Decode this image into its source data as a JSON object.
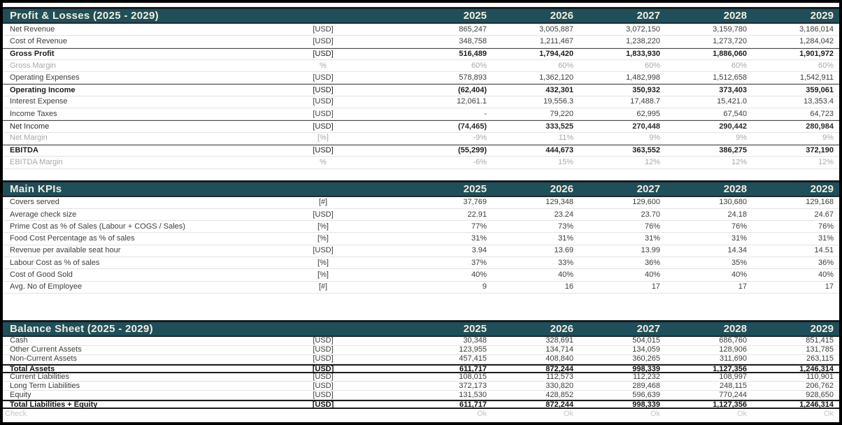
{
  "colors": {
    "header_bg": "#1f4f5a",
    "header_text": "#f2eedd",
    "text": "#3c3c3c",
    "muted": "#a8a8a8",
    "check": "#c5c5c5"
  },
  "years": [
    "2025",
    "2026",
    "2027",
    "2028",
    "2029"
  ],
  "sections": [
    {
      "id": "pnl",
      "title": "Profit & Losses (2025 - 2029)",
      "rows": [
        {
          "label": "Net Revenue",
          "unit": "[USD]",
          "values": [
            "865,247",
            "3,005,887",
            "3,072,150",
            "3,159,780",
            "3,186,014"
          ],
          "style": "normal"
        },
        {
          "label": "Cost of Revenue",
          "unit": "[USD]",
          "values": [
            "348,758",
            "1,211,467",
            "1,238,220",
            "1,273,720",
            "1,284,042"
          ],
          "style": "normal"
        },
        {
          "label": "Gross Profit",
          "unit": "[USD]",
          "values": [
            "516,489",
            "1,794,420",
            "1,833,930",
            "1,886,060",
            "1,901,972"
          ],
          "style": "total"
        },
        {
          "label": "Gross Margin",
          "unit": "%",
          "values": [
            "60%",
            "60%",
            "60%",
            "60%",
            "60%"
          ],
          "style": "muted"
        },
        {
          "label": "Operating Expenses",
          "unit": "[USD]",
          "values": [
            "578,893",
            "1,362,120",
            "1,482,998",
            "1,512,658",
            "1,542,911"
          ],
          "style": "normal"
        },
        {
          "label": "Operating Income",
          "unit": "[USD]",
          "values": [
            "(62,404)",
            "432,301",
            "350,932",
            "373,403",
            "359,061"
          ],
          "style": "total"
        },
        {
          "label": "Interest Expense",
          "unit": "[USD]",
          "values": [
            "12,061.1",
            "19,556.3",
            "17,488.7",
            "15,421.0",
            "13,353.4"
          ],
          "style": "normal"
        },
        {
          "label": "Income Taxes",
          "unit": "[USD]",
          "values": [
            "-",
            "79,220",
            "62,995",
            "67,540",
            "64,723"
          ],
          "style": "normal"
        },
        {
          "label": "Net Income",
          "unit": "[USD]",
          "values": [
            "(74,465)",
            "333,525",
            "270,448",
            "290,442",
            "280,984"
          ],
          "style": "subtotal"
        },
        {
          "label": "Net Margin",
          "unit": "[%]",
          "values": [
            "-9%",
            "11%",
            "9%",
            "9%",
            "9%"
          ],
          "style": "muted"
        },
        {
          "label": "EBITDA",
          "unit": "[USD]",
          "values": [
            "(55,299)",
            "444,673",
            "363,552",
            "386,275",
            "372,190"
          ],
          "style": "total"
        },
        {
          "label": "EBITDA Margin",
          "unit": "%",
          "values": [
            "-6%",
            "15%",
            "12%",
            "12%",
            "12%"
          ],
          "style": "muted"
        }
      ]
    },
    {
      "id": "kpis",
      "title": "Main KPIs",
      "rows": [
        {
          "label": "Covers served",
          "unit": "[#]",
          "values": [
            "37,769",
            "129,348",
            "129,600",
            "130,680",
            "129,168"
          ],
          "style": "normal"
        },
        {
          "label": "Average check size",
          "unit": "[USD]",
          "values": [
            "22.91",
            "23.24",
            "23.70",
            "24.18",
            "24.67"
          ],
          "style": "normal"
        },
        {
          "label": "Prime Cost as % of Sales (Labour + COGS / Sales)",
          "unit": "[%]",
          "values": [
            "77%",
            "73%",
            "76%",
            "76%",
            "76%"
          ],
          "style": "normal"
        },
        {
          "label": "Food Cost Percentage as % of sales",
          "unit": "[%]",
          "values": [
            "31%",
            "31%",
            "31%",
            "31%",
            "31%"
          ],
          "style": "normal"
        },
        {
          "label": "Revenue per available seat hour",
          "unit": "[USD]",
          "values": [
            "3.94",
            "13.69",
            "13.99",
            "14.34",
            "14.51"
          ],
          "style": "normal"
        },
        {
          "label": "Labour Cost as % of sales",
          "unit": "[%]",
          "values": [
            "37%",
            "33%",
            "36%",
            "35%",
            "36%"
          ],
          "style": "normal"
        },
        {
          "label": "Cost of Good Sold",
          "unit": "[%]",
          "values": [
            "40%",
            "40%",
            "40%",
            "40%",
            "40%"
          ],
          "style": "normal"
        },
        {
          "label": "Avg. No of Employee",
          "unit": "[#]",
          "values": [
            "9",
            "16",
            "17",
            "17",
            "17"
          ],
          "style": "normal"
        }
      ]
    },
    {
      "id": "balance",
      "title": "Balance Sheet (2025 - 2029)",
      "rows": [
        {
          "label": "Cash",
          "unit": "[USD]",
          "values": [
            "30,348",
            "328,691",
            "504,015",
            "686,760",
            "851,415"
          ],
          "style": "normal"
        },
        {
          "label": "Other Current Assets",
          "unit": "[USD]",
          "values": [
            "123,955",
            "134,714",
            "134,059",
            "128,906",
            "131,785"
          ],
          "style": "normal"
        },
        {
          "label": "Non-Current Assets",
          "unit": "[USD]",
          "values": [
            "457,415",
            "408,840",
            "360,265",
            "311,690",
            "263,115"
          ],
          "style": "normal"
        },
        {
          "label": "Total Assets",
          "unit": "[USD]",
          "values": [
            "611,717",
            "872,244",
            "998,339",
            "1,127,356",
            "1,246,314"
          ],
          "style": "grand-total"
        },
        {
          "label": "Current Liabilities",
          "unit": "[USD]",
          "values": [
            "108,015",
            "112,573",
            "112,232",
            "108,997",
            "110,901"
          ],
          "style": "normal"
        },
        {
          "label": "Long Term Liabilities",
          "unit": "[USD]",
          "values": [
            "372,173",
            "330,820",
            "289,468",
            "248,115",
            "206,762"
          ],
          "style": "normal"
        },
        {
          "label": "Equity",
          "unit": "[USD]",
          "values": [
            "131,530",
            "428,852",
            "596,639",
            "770,244",
            "928,650"
          ],
          "style": "normal"
        },
        {
          "label": "Total Liabilities + Equity",
          "unit": "[USD]",
          "values": [
            "611,717",
            "872,244",
            "998,339",
            "1,127,356",
            "1,246,314"
          ],
          "style": "grand-total"
        }
      ]
    }
  ],
  "check_row": {
    "label": "Check",
    "values": [
      "Ok",
      "Ok",
      "Ok",
      "Ok",
      "Ok"
    ]
  }
}
